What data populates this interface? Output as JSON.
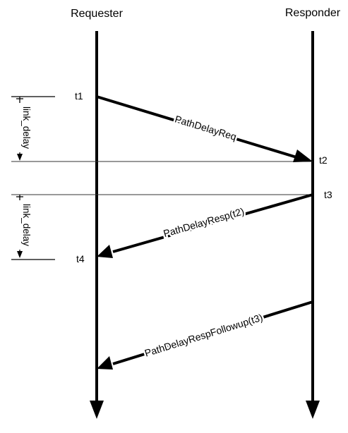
{
  "participants": {
    "requester": "Requester",
    "responder": "Responder"
  },
  "timestamps": {
    "t1": "t1",
    "t2": "t2",
    "t3": "t3",
    "t4": "t4"
  },
  "messages": {
    "req": "PathDelayReq",
    "resp": "PathDelayResp(t2)",
    "followup": "PathDelayRespFollowup(t3)"
  },
  "intervals": {
    "first": "link_delay",
    "second": "link_delay"
  },
  "colors": {
    "ink": "#000000",
    "guide": "#555555"
  }
}
